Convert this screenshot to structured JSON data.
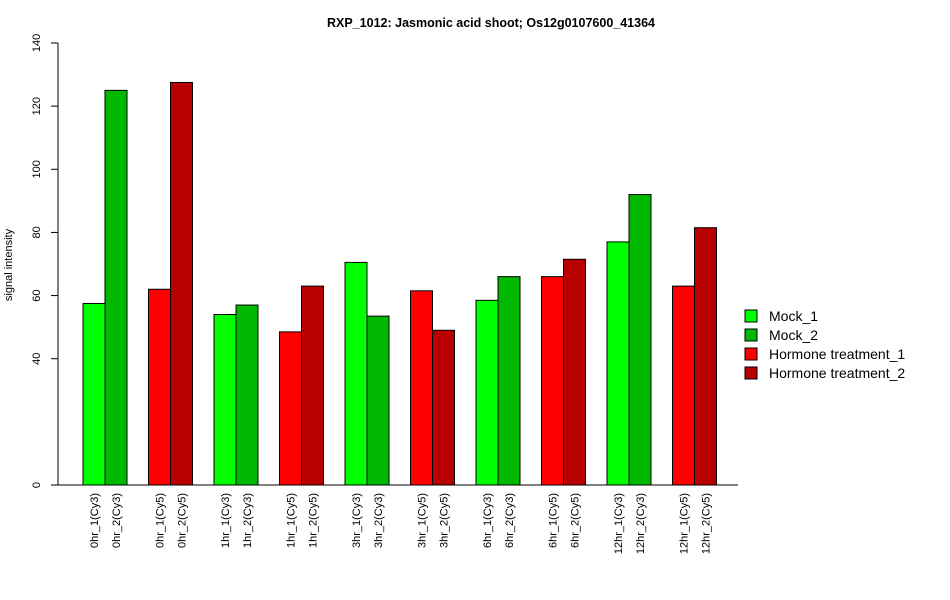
{
  "chart_data": {
    "type": "bar",
    "title": "RXP_1012: Jasmonic acid shoot; Os12g0107600_41364",
    "ylabel": "signal intensity",
    "ylim": [
      0,
      140
    ],
    "yticks": [
      0,
      40,
      60,
      80,
      100,
      120,
      140
    ],
    "categories": [
      "0hr_1(Cy3)",
      "0hr_2(Cy3)",
      "0hr_1(Cy5)",
      "0hr_2(Cy5)",
      "1hr_1(Cy3)",
      "1hr_2(Cy3)",
      "1hr_1(Cy5)",
      "1hr_2(Cy5)",
      "3hr_1(Cy3)",
      "3hr_2(Cy3)",
      "3hr_1(Cy5)",
      "3hr_2(Cy5)",
      "6hr_1(Cy3)",
      "6hr_2(Cy3)",
      "6hr_1(Cy5)",
      "6hr_2(Cy5)",
      "12hr_1(Cy3)",
      "12hr_2(Cy3)",
      "12hr_1(Cy5)",
      "12hr_2(Cy5)"
    ],
    "values": [
      57.5,
      125,
      62,
      127.5,
      54,
      57,
      48.5,
      63,
      70.5,
      53.5,
      61.5,
      49,
      58.5,
      66,
      66,
      71.5,
      77,
      92,
      63,
      81.5
    ],
    "bar_series": [
      0,
      1,
      2,
      3,
      0,
      1,
      2,
      3,
      0,
      1,
      2,
      3,
      0,
      1,
      2,
      3,
      0,
      1,
      2,
      3
    ],
    "series": [
      {
        "name": "Mock_1",
        "color": "#00ff00"
      },
      {
        "name": "Mock_2",
        "color": "#00b800"
      },
      {
        "name": "Hormone treatment_1",
        "color": "#ff0000"
      },
      {
        "name": "Hormone treatment_2",
        "color": "#b80000"
      }
    ],
    "legend_position": "right",
    "grid": false
  }
}
